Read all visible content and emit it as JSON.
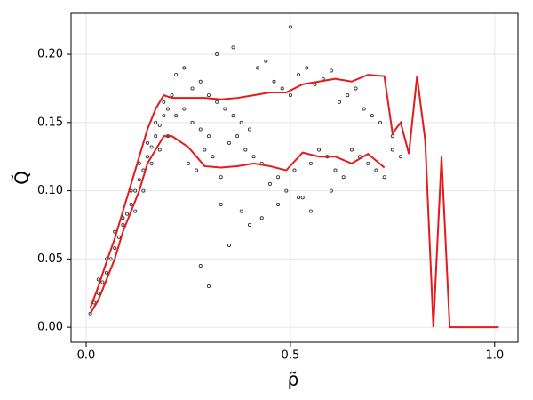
{
  "chart_data": {
    "type": "scatter",
    "xlabel": "ρ̃",
    "ylabel": "Q̃",
    "xlim": [
      -0.037,
      1.057
    ],
    "ylim": [
      -0.011,
      0.23
    ],
    "xticks": [
      {
        "value": 0,
        "label": "0.0"
      },
      0.5,
      {
        "value": 1,
        "label": "1.0"
      }
    ],
    "yticks": [
      {
        "value": 0,
        "label": "0.00"
      },
      {
        "value": 0.05,
        "label": "0.05"
      },
      {
        "value": 0.1,
        "label": "0.10"
      },
      {
        "value": 0.15,
        "label": "0.15"
      },
      {
        "value": 0.2,
        "label": "0.20"
      }
    ],
    "grid": true,
    "points": {
      "color": "#222222",
      "x": [
        0.01,
        0.02,
        0.03,
        0.04,
        0.05,
        0.06,
        0.07,
        0.08,
        0.09,
        0.1,
        0.11,
        0.12,
        0.13,
        0.14,
        0.15,
        0.16,
        0.17,
        0.18,
        0.19,
        0.2,
        0.03,
        0.05,
        0.07,
        0.09,
        0.11,
        0.13,
        0.15,
        0.17,
        0.19,
        0.21,
        0.12,
        0.14,
        0.16,
        0.18,
        0.2,
        0.22,
        0.24,
        0.26,
        0.28,
        0.3,
        0.22,
        0.24,
        0.26,
        0.28,
        0.3,
        0.32,
        0.34,
        0.36,
        0.38,
        0.4,
        0.25,
        0.27,
        0.29,
        0.31,
        0.33,
        0.35,
        0.37,
        0.39,
        0.41,
        0.43,
        0.42,
        0.44,
        0.46,
        0.48,
        0.5,
        0.52,
        0.54,
        0.56,
        0.58,
        0.6,
        0.45,
        0.47,
        0.49,
        0.51,
        0.53,
        0.55,
        0.57,
        0.59,
        0.61,
        0.63,
        0.62,
        0.64,
        0.66,
        0.68,
        0.7,
        0.72,
        0.65,
        0.67,
        0.69,
        0.71,
        0.73,
        0.75,
        0.77,
        0.3,
        0.35,
        0.4,
        0.28,
        0.33,
        0.38,
        0.43,
        0.47,
        0.52,
        0.55,
        0.6,
        0.32,
        0.36,
        0.5,
        0.75
      ],
      "y": [
        0.01,
        0.018,
        0.025,
        0.033,
        0.04,
        0.05,
        0.058,
        0.066,
        0.075,
        0.083,
        0.09,
        0.1,
        0.108,
        0.115,
        0.125,
        0.132,
        0.14,
        0.148,
        0.155,
        0.16,
        0.035,
        0.05,
        0.07,
        0.08,
        0.1,
        0.12,
        0.135,
        0.15,
        0.165,
        0.17,
        0.085,
        0.1,
        0.12,
        0.13,
        0.14,
        0.155,
        0.16,
        0.15,
        0.145,
        0.14,
        0.185,
        0.19,
        0.175,
        0.18,
        0.17,
        0.165,
        0.16,
        0.155,
        0.15,
        0.145,
        0.12,
        0.115,
        0.13,
        0.125,
        0.11,
        0.135,
        0.14,
        0.13,
        0.125,
        0.12,
        0.19,
        0.195,
        0.18,
        0.175,
        0.17,
        0.185,
        0.19,
        0.178,
        0.182,
        0.188,
        0.105,
        0.11,
        0.1,
        0.115,
        0.095,
        0.12,
        0.13,
        0.125,
        0.115,
        0.11,
        0.165,
        0.17,
        0.175,
        0.16,
        0.155,
        0.15,
        0.13,
        0.125,
        0.12,
        0.115,
        0.11,
        0.14,
        0.125,
        0.03,
        0.06,
        0.075,
        0.045,
        0.09,
        0.085,
        0.08,
        0.09,
        0.095,
        0.085,
        0.1,
        0.2,
        0.205,
        0.22,
        0.13
      ]
    },
    "lines": [
      {
        "color": "#e41a1c",
        "x": [
          0.01,
          0.03,
          0.05,
          0.07,
          0.09,
          0.11,
          0.13,
          0.15,
          0.17,
          0.19,
          0.21,
          0.25,
          0.29,
          0.33,
          0.37,
          0.41,
          0.45,
          0.49,
          0.53,
          0.57,
          0.61,
          0.65,
          0.69,
          0.73,
          0.75,
          0.77,
          0.79,
          0.81,
          0.83,
          0.85,
          0.87,
          0.89,
          0.93,
          0.97,
          1.01
        ],
        "values": [
          0.014,
          0.03,
          0.048,
          0.065,
          0.085,
          0.105,
          0.125,
          0.145,
          0.16,
          0.17,
          0.168,
          0.168,
          0.168,
          0.167,
          0.168,
          0.17,
          0.172,
          0.172,
          0.178,
          0.18,
          0.182,
          0.18,
          0.185,
          0.184,
          0.142,
          0.15,
          0.127,
          0.184,
          0.137,
          0,
          0.125,
          0,
          0,
          0,
          0
        ]
      },
      {
        "color": "#e41a1c",
        "x": [
          0.01,
          0.03,
          0.05,
          0.07,
          0.09,
          0.11,
          0.13,
          0.15,
          0.17,
          0.19,
          0.21,
          0.25,
          0.29,
          0.33,
          0.37,
          0.41,
          0.45,
          0.49,
          0.53,
          0.57,
          0.61,
          0.65,
          0.69,
          0.73,
          0.75,
          0.77,
          0.79,
          0.81,
          0.83,
          0.85,
          0.87,
          0.89,
          0.93,
          0.97,
          1.01
        ],
        "values": [
          0.01,
          0.02,
          0.035,
          0.05,
          0.07,
          0.085,
          0.1,
          0.12,
          0.13,
          0.14,
          0.14,
          0.132,
          0.118,
          0.117,
          0.118,
          0.12,
          0.118,
          0.115,
          0.128,
          0.125,
          0.125,
          0.12,
          0.127,
          0.117,
          null,
          null,
          null,
          null,
          null,
          null,
          null,
          null,
          null,
          null,
          null
        ]
      }
    ]
  }
}
